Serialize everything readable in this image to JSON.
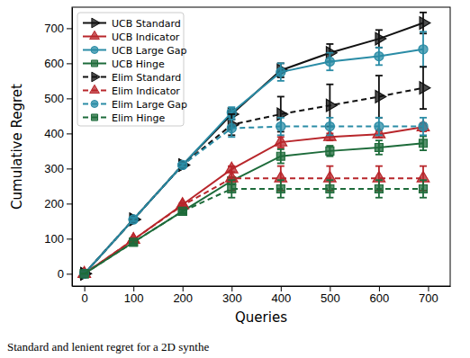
{
  "chart_data": {
    "type": "line",
    "x_label": "Queries",
    "y_label": "Cumulative Regret",
    "caption": "Standard and lenient regret for a 2D synthe",
    "x": [
      0,
      100,
      200,
      300,
      400,
      500,
      600,
      690
    ],
    "xlim": [
      -25,
      745
    ],
    "xticks": [
      0,
      100,
      200,
      300,
      400,
      500,
      600,
      700
    ],
    "ylim": [
      -35,
      760
    ],
    "yticks": [
      0,
      100,
      200,
      300,
      400,
      500,
      600,
      700
    ],
    "grid": false,
    "legend": "upper left",
    "series": [
      {
        "name": "UCB Standard",
        "color": "#111111",
        "marker": "triangle-right",
        "line_style": "solid",
        "values": [
          0,
          155,
          310,
          455,
          580,
          630,
          670,
          715
        ],
        "errors": [
          0,
          5,
          5,
          15,
          20,
          25,
          25,
          30
        ]
      },
      {
        "name": "UCB Indicator",
        "color": "#b8262b",
        "marker": "triangle-up",
        "line_style": "solid",
        "values": [
          0,
          97,
          197,
          298,
          375,
          390,
          398,
          418
        ],
        "errors": [
          0,
          5,
          5,
          8,
          15,
          10,
          10,
          12
        ]
      },
      {
        "name": "UCB Large Gap",
        "color": "#2a8ca6",
        "marker": "circle",
        "line_style": "solid",
        "values": [
          0,
          155,
          310,
          460,
          575,
          605,
          620,
          640
        ],
        "errors": [
          0,
          5,
          5,
          15,
          25,
          25,
          25,
          50
        ]
      },
      {
        "name": "UCB Hinge",
        "color": "#1d6b3a",
        "marker": "square",
        "line_style": "solid",
        "values": [
          0,
          90,
          178,
          265,
          335,
          350,
          360,
          372
        ],
        "errors": [
          0,
          5,
          5,
          10,
          20,
          15,
          20,
          20
        ]
      },
      {
        "name": "Elim Standard",
        "color": "#111111",
        "marker": "triangle-right",
        "line_style": "dashed",
        "values": [
          0,
          155,
          310,
          425,
          455,
          480,
          505,
          530
        ],
        "errors": [
          0,
          5,
          5,
          30,
          50,
          60,
          60,
          60
        ]
      },
      {
        "name": "Elim Indicator",
        "color": "#b8262b",
        "marker": "triangle-up",
        "line_style": "dashed",
        "values": [
          0,
          97,
          195,
          272,
          272,
          272,
          272,
          272
        ],
        "errors": [
          0,
          5,
          5,
          35,
          35,
          35,
          35,
          35
        ]
      },
      {
        "name": "Elim Large Gap",
        "color": "#2a8ca6",
        "marker": "circle",
        "line_style": "dashed",
        "values": [
          0,
          155,
          310,
          415,
          420,
          420,
          420,
          420
        ],
        "errors": [
          0,
          5,
          5,
          25,
          25,
          25,
          25,
          25
        ]
      },
      {
        "name": "Elim Hinge",
        "color": "#1d6b3a",
        "marker": "square",
        "line_style": "dashed",
        "values": [
          0,
          90,
          178,
          242,
          242,
          242,
          242,
          242
        ],
        "errors": [
          0,
          5,
          5,
          25,
          25,
          25,
          25,
          25
        ]
      }
    ]
  }
}
